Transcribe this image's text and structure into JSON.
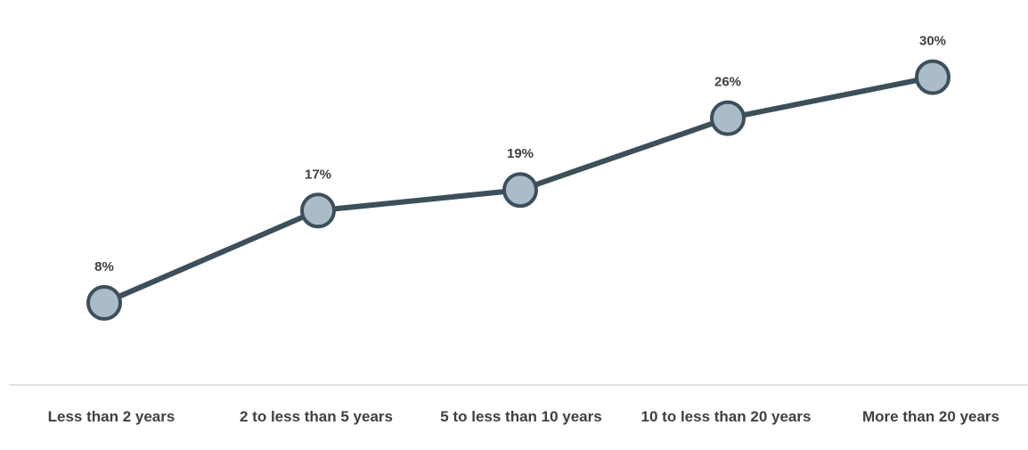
{
  "chart_data": {
    "type": "line",
    "title": "",
    "xlabel": "",
    "ylabel": "",
    "categories": [
      "Less than 2 years",
      "2 to less than 5 years",
      "5 to less than 10 years",
      "10 to less than 20 years",
      "More than 20 years"
    ],
    "series": [
      {
        "values": [
          8,
          17,
          19,
          26,
          30
        ],
        "labels": [
          "8%",
          "17%",
          "19%",
          "26%",
          "30%"
        ]
      }
    ],
    "ylim": [
      0,
      35
    ],
    "grid": false,
    "legend": "none",
    "colors": {
      "line": "#3c4f5a",
      "marker_fill": "#a9bcc7",
      "axis": "#d9d9d9",
      "text": "#404040"
    }
  }
}
